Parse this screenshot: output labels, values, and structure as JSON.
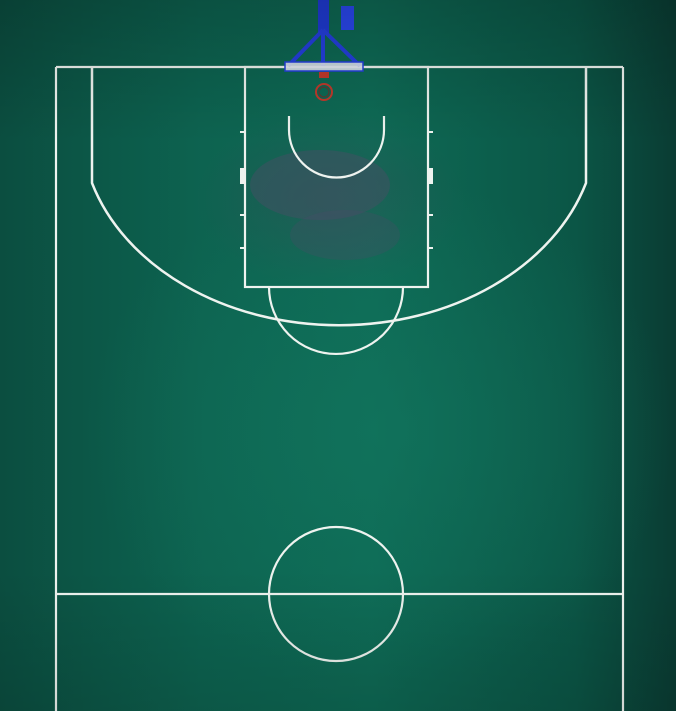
{
  "scene": {
    "kind": "aerial-photo",
    "subject": "basketball-half-court",
    "colors": {
      "court_surface": "#0e6a55",
      "court_edge_shadow": "#0a3c33",
      "line": "#eef3ef",
      "backboard_frame": "#1f3bd6",
      "rim": "#c0392b",
      "paint_stain": "#4a4d66"
    }
  }
}
